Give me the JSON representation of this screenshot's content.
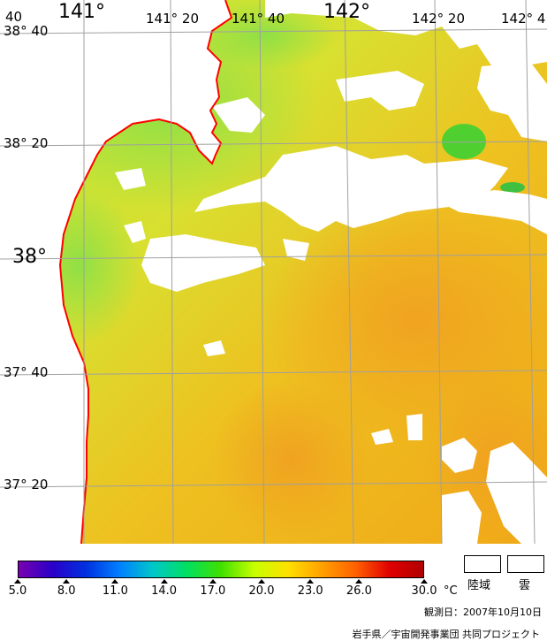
{
  "map": {
    "lon_labels": [
      {
        "text": "141°",
        "size": "big"
      },
      {
        "text": "141° 20",
        "size": "sm"
      },
      {
        "text": "141° 40",
        "size": "sm"
      },
      {
        "text": "142°",
        "size": "big"
      },
      {
        "text": "142° 20",
        "size": "sm"
      },
      {
        "text": "142° 4",
        "size": "sm"
      }
    ],
    "lat_labels": [
      {
        "text": "38° 40",
        "size": "sm"
      },
      {
        "text": "38° 20",
        "size": "sm"
      },
      {
        "text": "38°",
        "size": "big"
      },
      {
        "text": "37° 40",
        "size": "sm"
      },
      {
        "text": "37° 20",
        "size": "sm"
      }
    ],
    "corner_label": "40",
    "colors": {
      "coast": "#ff0000",
      "grid": "#a0a0a0",
      "cloud": "#ffffff",
      "land": "#ffffff"
    }
  },
  "colorbar": {
    "ticks": [
      "5.0",
      "8.0",
      "11.0",
      "14.0",
      "17.0",
      "20.0",
      "23.0",
      "26.0",
      "30.0"
    ],
    "unit": "°C",
    "range": [
      5.0,
      30.0
    ],
    "colors": [
      "#7a00b0",
      "#2a00c8",
      "#0030e0",
      "#0080ff",
      "#00c8c8",
      "#00e060",
      "#40e000",
      "#c8ff00",
      "#ffe000",
      "#ffa000",
      "#ff6000",
      "#e00000",
      "#b00000"
    ]
  },
  "legend": {
    "land_label": "陸域",
    "cloud_label": "雲"
  },
  "observation_date": "観測日：2007年10月10日",
  "credit": "岩手県／宇宙開発事業団 共同プロジェクト"
}
